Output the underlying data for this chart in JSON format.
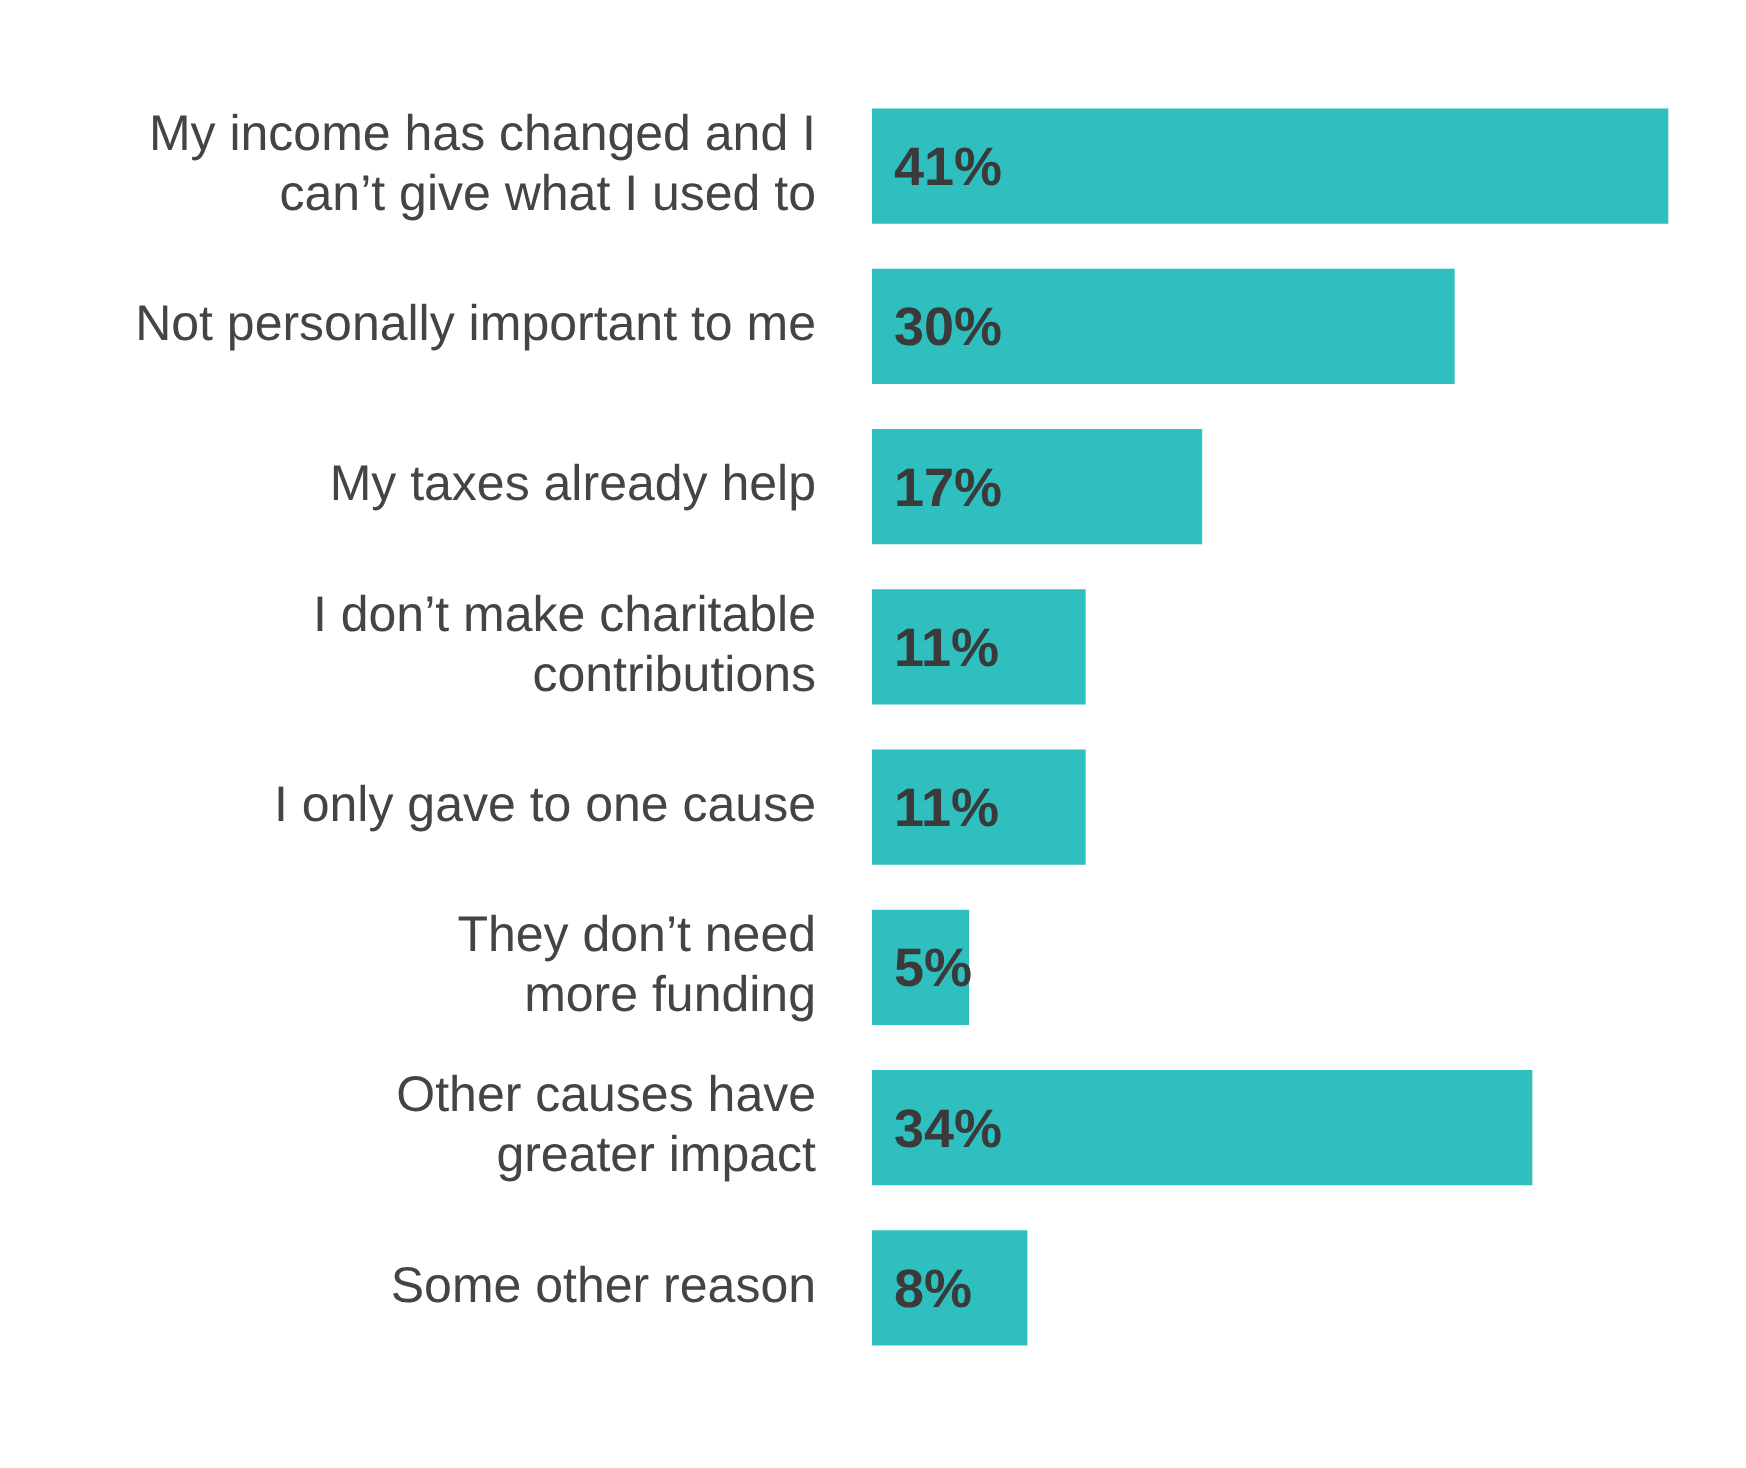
{
  "chart_data": {
    "type": "bar",
    "orientation": "horizontal",
    "color": "#30bfbf",
    "categories": [
      "My income has changed and I\ncan’t give what I used to",
      "Not personally important to me",
      "My taxes already help",
      "I don’t make charitable\ncontributions",
      "I only gave to one cause",
      "They don’t need\nmore funding",
      "Other causes have\ngreater impact",
      "Some other reason"
    ],
    "values": [
      41,
      30,
      17,
      11,
      11,
      5,
      34,
      8
    ],
    "value_labels": [
      "41%",
      "30%",
      "17%",
      "11%",
      "11%",
      "5%",
      "34%",
      "8%"
    ]
  }
}
